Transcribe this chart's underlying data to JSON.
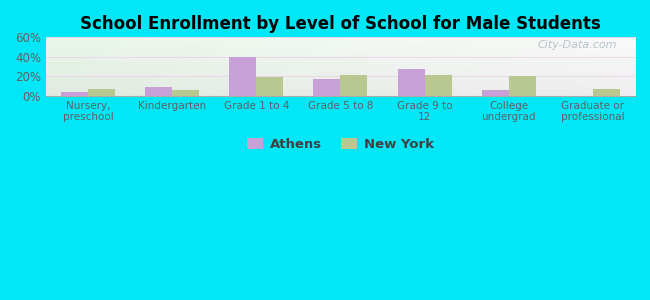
{
  "title": "School Enrollment by Level of School for Male Students",
  "categories": [
    "Nursery,\npreschool",
    "Kindergarten",
    "Grade 1 to 4",
    "Grade 5 to 8",
    "Grade 9 to\n12",
    "College\nundergrad",
    "Graduate or\nprofessional"
  ],
  "athens_values": [
    3.5,
    9.0,
    39.5,
    17.0,
    27.0,
    6.0,
    0.0
  ],
  "newyork_values": [
    7.0,
    5.5,
    19.0,
    21.0,
    21.0,
    20.5,
    7.0
  ],
  "athens_color": "#c8a0d8",
  "newyork_color": "#b8c890",
  "background_outer": "#00e8f8",
  "axis_label_color": "#606060",
  "title_color": "#000000",
  "ylim": [
    0,
    60
  ],
  "yticks": [
    0,
    20,
    40,
    60
  ],
  "ytick_labels": [
    "0%",
    "20%",
    "40%",
    "60%"
  ],
  "legend_athens": "Athens",
  "legend_newyork": "New York",
  "bar_width": 0.32,
  "watermark": "City-Data.com"
}
